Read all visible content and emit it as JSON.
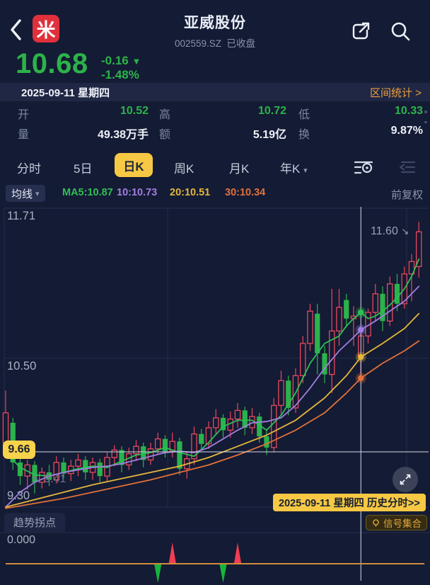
{
  "icons": {
    "back": "‹",
    "caret_down": "▾",
    "chevron_right": ">",
    "triangle_down": "▼",
    "arrow_down_right": "↘",
    "arrow_up_left": "↖"
  },
  "header": {
    "title": "亚威股份",
    "code": "002559.SZ",
    "market_status": "已收盘",
    "logo_char": "米"
  },
  "quote": {
    "price": "10.68",
    "change": "-0.16",
    "change_pct": "-1.48%"
  },
  "date_bar": {
    "date": "2025-09-11 星期四",
    "range_stats": "区间统计"
  },
  "stats": {
    "open_label": "开",
    "open": "10.52",
    "high_label": "高",
    "high": "10.72",
    "low_label": "低",
    "low": "10.33",
    "vol_label": "量",
    "vol": "49.38万手",
    "amt_label": "额",
    "amt": "5.19亿",
    "turn_label": "换",
    "turn": "9.87%"
  },
  "tabs": {
    "items": [
      "分时",
      "5日",
      "日K",
      "周K",
      "月K",
      "年K"
    ],
    "selected": "日K"
  },
  "ma_bar": {
    "btn": "均线",
    "ma5": "MA5:10.87",
    "ma10": "10:10.73",
    "ma20": "20:10.51",
    "ma30": "30:10.34",
    "adjust_mode": "前复权"
  },
  "chart": {
    "axis_top": "11.71",
    "axis_mid": "10.50",
    "axis_bottom": "9.30",
    "high_price": "11.60",
    "low_price": "9.41",
    "cross_price": "9.66",
    "hist_badge": "2025-09-11 星期四 历史分时>>",
    "indicator_tab": "趋势拐点",
    "signal_badge": "信号集合",
    "zero_label": "0.000"
  },
  "chart_data": {
    "type": "candlestick",
    "title": "亚威股份 002559.SZ 日K 前复权",
    "ylim": [
      9.3,
      11.71
    ],
    "y_gridlines": [
      11.71,
      10.5,
      9.3
    ],
    "up_color": "#e8475e",
    "down_color": "#2bb24c",
    "candles_ohlc": [
      [
        9.82,
        10.24,
        9.74,
        10.06
      ],
      [
        9.98,
        10.02,
        9.6,
        9.66
      ],
      [
        9.66,
        9.72,
        9.48,
        9.55
      ],
      [
        9.55,
        9.68,
        9.44,
        9.64
      ],
      [
        9.64,
        9.67,
        9.41,
        9.5
      ],
      [
        9.5,
        9.62,
        9.45,
        9.58
      ],
      [
        9.58,
        9.64,
        9.47,
        9.52
      ],
      [
        9.52,
        9.71,
        9.49,
        9.66
      ],
      [
        9.66,
        9.7,
        9.53,
        9.57
      ],
      [
        9.57,
        9.68,
        9.51,
        9.63
      ],
      [
        9.63,
        9.73,
        9.55,
        9.68
      ],
      [
        9.68,
        9.71,
        9.52,
        9.58
      ],
      [
        9.58,
        9.7,
        9.52,
        9.66
      ],
      [
        9.66,
        9.69,
        9.5,
        9.55
      ],
      [
        9.55,
        9.74,
        9.51,
        9.7
      ],
      [
        9.7,
        9.8,
        9.63,
        9.76
      ],
      [
        9.76,
        9.79,
        9.58,
        9.64
      ],
      [
        9.64,
        9.78,
        9.6,
        9.73
      ],
      [
        9.73,
        9.84,
        9.67,
        9.79
      ],
      [
        9.79,
        9.82,
        9.62,
        9.68
      ],
      [
        9.68,
        9.82,
        9.64,
        9.77
      ],
      [
        9.77,
        9.9,
        9.72,
        9.85
      ],
      [
        9.85,
        9.88,
        9.7,
        9.75
      ],
      [
        9.75,
        9.9,
        9.7,
        9.83
      ],
      [
        9.83,
        9.86,
        9.56,
        9.61
      ],
      [
        9.61,
        9.74,
        9.53,
        9.69
      ],
      [
        9.69,
        9.95,
        9.64,
        9.89
      ],
      [
        9.89,
        9.93,
        9.76,
        9.81
      ],
      [
        9.81,
        9.99,
        9.77,
        9.94
      ],
      [
        9.94,
        10.09,
        9.88,
        10.02
      ],
      [
        10.02,
        10.05,
        9.86,
        9.92
      ],
      [
        9.92,
        10.07,
        9.86,
        10.01
      ],
      [
        10.01,
        10.14,
        9.94,
        10.08
      ],
      [
        10.08,
        10.11,
        9.88,
        9.94
      ],
      [
        9.94,
        10.1,
        9.89,
        10.03
      ],
      [
        10.03,
        10.06,
        9.82,
        9.87
      ],
      [
        9.87,
        9.93,
        9.72,
        9.78
      ],
      [
        9.78,
        10.18,
        9.74,
        10.12
      ],
      [
        10.12,
        10.4,
        10.05,
        10.32
      ],
      [
        10.32,
        10.36,
        10.04,
        10.1
      ],
      [
        10.1,
        10.42,
        10.06,
        10.36
      ],
      [
        10.36,
        10.68,
        10.3,
        10.62
      ],
      [
        10.62,
        10.94,
        10.56,
        10.88
      ],
      [
        10.86,
        10.94,
        10.37,
        10.54
      ],
      [
        10.54,
        10.6,
        10.3,
        10.37
      ],
      [
        10.37,
        11.06,
        10.22,
        10.72
      ],
      [
        10.72,
        11.06,
        10.6,
        10.91
      ],
      [
        10.97,
        11.02,
        10.75,
        10.82
      ],
      [
        10.82,
        10.92,
        10.6,
        10.84
      ],
      [
        10.52,
        10.72,
        10.33,
        10.68
      ],
      [
        10.68,
        10.9,
        10.62,
        10.87
      ],
      [
        10.87,
        11.1,
        10.8,
        11.02
      ],
      [
        11.02,
        11.08,
        10.72,
        10.8
      ],
      [
        10.8,
        11.16,
        10.76,
        11.1
      ],
      [
        11.1,
        11.18,
        10.88,
        10.94
      ],
      [
        10.94,
        11.24,
        10.9,
        11.18
      ],
      [
        11.18,
        11.34,
        10.96,
        11.28
      ],
      [
        11.24,
        11.6,
        11.15,
        11.52
      ]
    ],
    "ma_series": [
      {
        "name": "MA5",
        "color": "#2fbf54",
        "points": [
          [
            0,
            9.74
          ],
          [
            2,
            9.62
          ],
          [
            4,
            9.56
          ],
          [
            6,
            9.55
          ],
          [
            8,
            9.58
          ],
          [
            10,
            9.61
          ],
          [
            12,
            9.63
          ],
          [
            14,
            9.62
          ],
          [
            16,
            9.67
          ],
          [
            18,
            9.72
          ],
          [
            20,
            9.74
          ],
          [
            22,
            9.78
          ],
          [
            24,
            9.74
          ],
          [
            26,
            9.71
          ],
          [
            28,
            9.82
          ],
          [
            30,
            9.95
          ],
          [
            32,
            10.0
          ],
          [
            34,
            10.0
          ],
          [
            36,
            9.92
          ],
          [
            38,
            10.04
          ],
          [
            40,
            10.22
          ],
          [
            42,
            10.46
          ],
          [
            44,
            10.62
          ],
          [
            46,
            10.68
          ],
          [
            47,
            10.76
          ],
          [
            48,
            10.82
          ],
          [
            49,
            10.87
          ],
          [
            50,
            10.82
          ],
          [
            51,
            10.84
          ],
          [
            52,
            10.88
          ],
          [
            53,
            10.93
          ],
          [
            54,
            10.99
          ],
          [
            55,
            11.06
          ],
          [
            56,
            11.16
          ],
          [
            57,
            11.3
          ]
        ]
      },
      {
        "name": "MA10",
        "color": "#a07fe0",
        "points": [
          [
            0,
            9.3
          ],
          [
            2,
            9.42
          ],
          [
            4,
            9.5
          ],
          [
            6,
            9.55
          ],
          [
            8,
            9.58
          ],
          [
            10,
            9.6
          ],
          [
            12,
            9.62
          ],
          [
            14,
            9.63
          ],
          [
            16,
            9.65
          ],
          [
            18,
            9.68
          ],
          [
            20,
            9.71
          ],
          [
            22,
            9.74
          ],
          [
            24,
            9.75
          ],
          [
            26,
            9.74
          ],
          [
            28,
            9.78
          ],
          [
            30,
            9.85
          ],
          [
            32,
            9.92
          ],
          [
            34,
            9.98
          ],
          [
            36,
            9.99
          ],
          [
            38,
            10.02
          ],
          [
            40,
            10.12
          ],
          [
            42,
            10.26
          ],
          [
            44,
            10.42
          ],
          [
            46,
            10.56
          ],
          [
            48,
            10.67
          ],
          [
            49,
            10.73
          ],
          [
            51,
            10.8
          ],
          [
            53,
            10.88
          ],
          [
            55,
            10.96
          ],
          [
            57,
            11.08
          ]
        ]
      },
      {
        "name": "MA20",
        "color": "#e5b63c",
        "points": [
          [
            0,
            9.3
          ],
          [
            4,
            9.36
          ],
          [
            8,
            9.42
          ],
          [
            12,
            9.48
          ],
          [
            16,
            9.53
          ],
          [
            20,
            9.58
          ],
          [
            24,
            9.63
          ],
          [
            28,
            9.7
          ],
          [
            32,
            9.79
          ],
          [
            36,
            9.88
          ],
          [
            40,
            10.0
          ],
          [
            44,
            10.18
          ],
          [
            47,
            10.36
          ],
          [
            49,
            10.51
          ],
          [
            52,
            10.62
          ],
          [
            55,
            10.74
          ],
          [
            57,
            10.86
          ]
        ]
      },
      {
        "name": "MA30",
        "color": "#e2713a",
        "points": [
          [
            0,
            9.29
          ],
          [
            4,
            9.33
          ],
          [
            8,
            9.37
          ],
          [
            12,
            9.42
          ],
          [
            16,
            9.47
          ],
          [
            20,
            9.52
          ],
          [
            24,
            9.58
          ],
          [
            28,
            9.64
          ],
          [
            32,
            9.72
          ],
          [
            36,
            9.81
          ],
          [
            40,
            9.92
          ],
          [
            44,
            10.06
          ],
          [
            47,
            10.22
          ],
          [
            49,
            10.34
          ],
          [
            52,
            10.46
          ],
          [
            55,
            10.56
          ],
          [
            57,
            10.64
          ]
        ]
      }
    ],
    "crosshair": {
      "index": 49,
      "date": "2025-09-11 星期四",
      "pressed_price": 9.66,
      "ma_values": {
        "MA5": 10.87,
        "MA10": 10.73,
        "MA20": 10.51,
        "MA30": 10.34
      }
    },
    "annotations": {
      "window_high": {
        "index": 57,
        "price": 11.6
      },
      "window_low": {
        "index": 4,
        "price": 9.41
      }
    },
    "sub_indicator": {
      "name": "趋势拐点",
      "baseline": 0.0,
      "signals": [
        {
          "index": 21,
          "dir": "down"
        },
        {
          "index": 23,
          "dir": "up"
        },
        {
          "index": 30,
          "dir": "down"
        },
        {
          "index": 32,
          "dir": "up"
        }
      ]
    }
  }
}
